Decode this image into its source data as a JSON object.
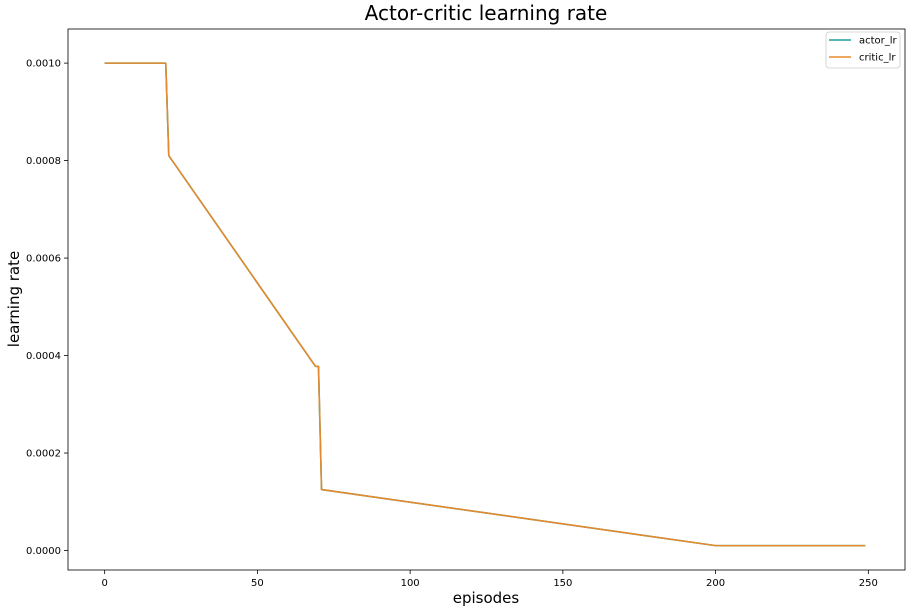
{
  "chart_data": {
    "type": "line",
    "title": "Actor-critic learning rate",
    "xlabel": "episodes",
    "ylabel": "learning rate",
    "xlim": [
      -12,
      262
    ],
    "ylim": [
      -4e-05,
      0.00107
    ],
    "xticks": [
      0,
      50,
      100,
      150,
      200,
      250
    ],
    "xtick_labels": [
      "0",
      "50",
      "100",
      "150",
      "200",
      "250"
    ],
    "yticks": [
      0.0,
      0.0002,
      0.0004,
      0.0006,
      0.0008,
      0.001
    ],
    "ytick_labels": [
      "0.0000",
      "0.0002",
      "0.0004",
      "0.0006",
      "0.0008",
      "0.0010"
    ],
    "grid": false,
    "legend_position": "top-right",
    "series": [
      {
        "name": "actor_lr",
        "color": "#1f9e9a",
        "x": [
          0,
          20,
          21,
          69,
          70,
          71,
          200,
          249
        ],
        "y": [
          0.001,
          0.001,
          0.00081,
          0.000378,
          0.000378,
          0.000125,
          1e-05,
          1e-05
        ]
      },
      {
        "name": "critic_lr",
        "color": "#e58a2c",
        "x": [
          0,
          20,
          21,
          69,
          70,
          71,
          200,
          249
        ],
        "y": [
          0.001,
          0.001,
          0.00081,
          0.000378,
          0.000378,
          0.000125,
          1e-05,
          1e-05
        ]
      }
    ]
  }
}
